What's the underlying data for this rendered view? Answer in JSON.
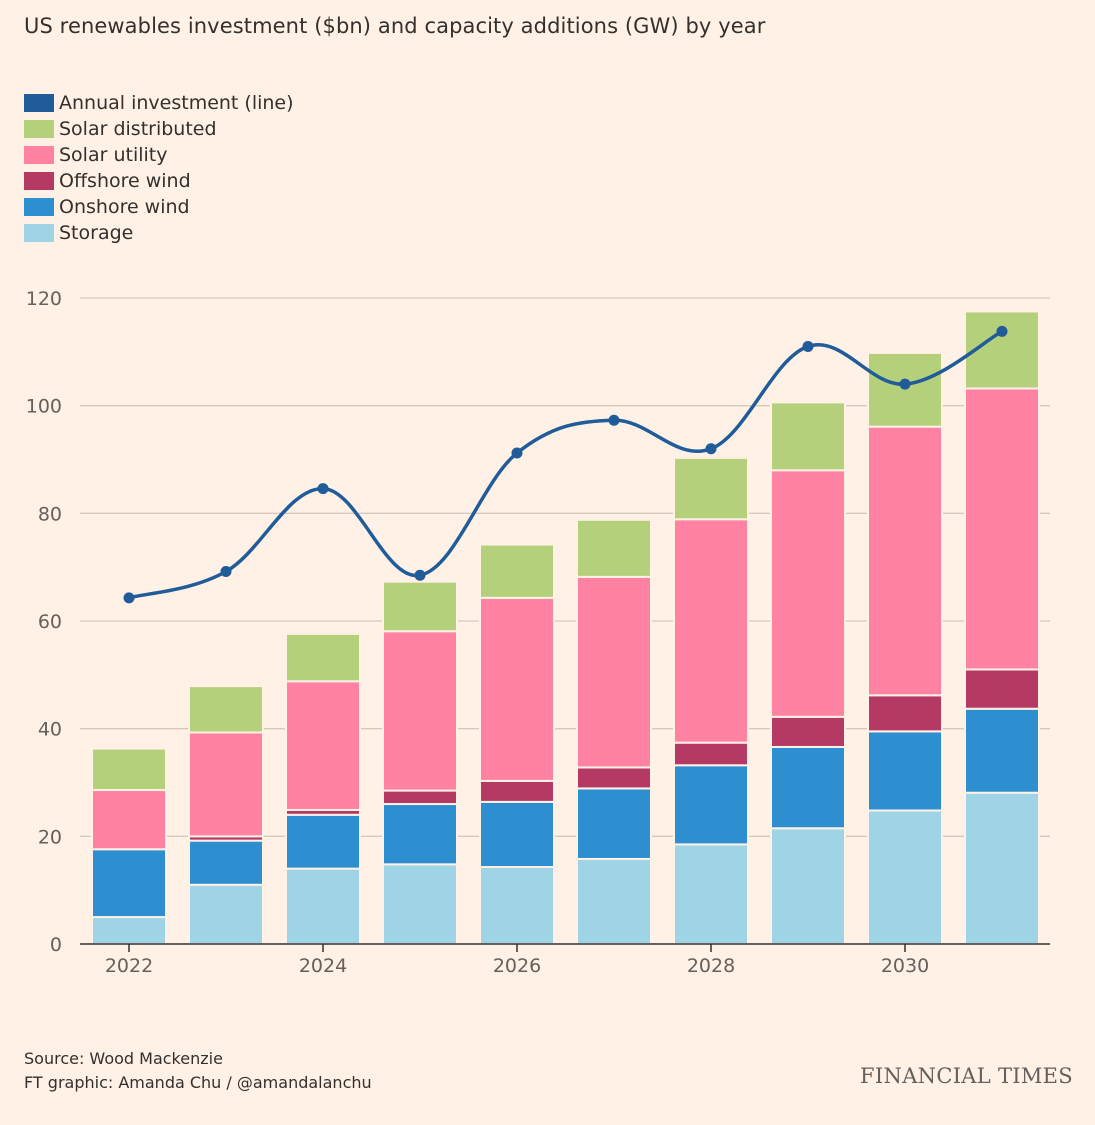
{
  "title": "US renewables investment ($bn) and capacity additions (GW) by year",
  "source": "Source: Wood Mackenzie",
  "credit": "FT graphic: Amanda Chu / @amandalanchu",
  "brand": "FINANCIAL TIMES",
  "legend": [
    {
      "label": "Annual investment (line)",
      "color": "#1f5c99"
    },
    {
      "label": "Solar distributed",
      "color": "#b5d07a"
    },
    {
      "label": "Solar utility",
      "color": "#ff82a3"
    },
    {
      "label": "Offshore wind",
      "color": "#b43a63"
    },
    {
      "label": "Onshore wind",
      "color": "#2e8fd0"
    },
    {
      "label": "Storage",
      "color": "#9fd3e6"
    }
  ],
  "chart_data": {
    "type": "bar",
    "stacked": true,
    "title": "US renewables investment ($bn) and capacity additions (GW) by year",
    "categories": [
      "2022",
      "2023",
      "2024",
      "2025",
      "2026",
      "2027",
      "2028",
      "2029",
      "2030",
      "2031"
    ],
    "x_tick_labels": [
      "2022",
      "2024",
      "2026",
      "2028",
      "2030"
    ],
    "ylim": [
      0,
      120
    ],
    "y_ticks": [
      0,
      20,
      40,
      60,
      80,
      100,
      120
    ],
    "grid": true,
    "legend_position": "top-left",
    "series": [
      {
        "name": "Storage",
        "color": "#9fd3e6",
        "values": [
          5,
          11,
          14,
          14.8,
          14.3,
          15.8,
          18.5,
          21.5,
          24.8,
          28.1
        ]
      },
      {
        "name": "Onshore wind",
        "color": "#2e8fd0",
        "values": [
          12.6,
          8.2,
          10,
          11.2,
          12.1,
          13.1,
          14.7,
          15.1,
          14.7,
          15.6
        ]
      },
      {
        "name": "Offshore wind",
        "color": "#b43a63",
        "values": [
          0,
          0.8,
          0.9,
          2.5,
          3.9,
          3.9,
          4.2,
          5.6,
          6.7,
          7.3
        ]
      },
      {
        "name": "Solar utility",
        "color": "#ff82a3",
        "values": [
          11,
          19.3,
          23.9,
          29.6,
          34,
          35.4,
          41.5,
          45.8,
          49.9,
          52.2
        ]
      },
      {
        "name": "Solar distributed",
        "color": "#b5d07a",
        "values": [
          7.7,
          8.6,
          8.8,
          9.2,
          9.9,
          10.6,
          11.4,
          12.6,
          13.7,
          14.3
        ]
      }
    ],
    "line": {
      "name": "Annual investment (line)",
      "color": "#1f5c99",
      "values": [
        64.3,
        69.2,
        84.6,
        68.5,
        91.2,
        97.3,
        92,
        111,
        104,
        113.8
      ]
    }
  }
}
